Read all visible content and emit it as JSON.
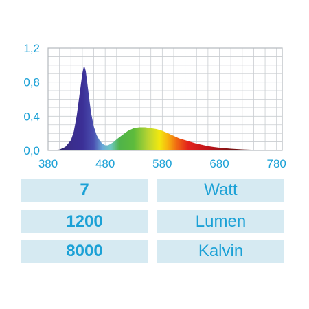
{
  "chart_data": {
    "type": "area",
    "title": "",
    "xlabel": "",
    "ylabel": "",
    "xlim": [
      380,
      790
    ],
    "ylim": [
      0,
      1.2
    ],
    "x_ticks": [
      380,
      480,
      580,
      680,
      780
    ],
    "x_tick_labels": [
      "380",
      "480",
      "580",
      "680",
      "780"
    ],
    "y_ticks": [
      0,
      0.4,
      0.8,
      1.2
    ],
    "y_tick_labels": [
      "0,0",
      "0,4",
      "0,8",
      "1,2"
    ],
    "grid": true,
    "legend": "none",
    "series": [
      {
        "x": [
          380,
          400,
          410,
          420,
          425,
          430,
          435,
          440,
          443,
          446,
          450,
          455,
          460,
          465,
          470,
          475,
          480,
          485,
          490,
          495,
          500,
          510,
          520,
          530,
          540,
          550,
          560,
          570,
          580,
          590,
          600,
          610,
          620,
          630,
          640,
          650,
          660,
          670,
          680,
          700,
          720,
          740,
          760,
          780,
          790
        ],
        "y": [
          0.0,
          0.01,
          0.04,
          0.12,
          0.22,
          0.4,
          0.65,
          0.9,
          1.0,
          0.93,
          0.72,
          0.45,
          0.28,
          0.18,
          0.12,
          0.08,
          0.06,
          0.06,
          0.08,
          0.1,
          0.13,
          0.18,
          0.23,
          0.26,
          0.27,
          0.27,
          0.26,
          0.25,
          0.23,
          0.2,
          0.17,
          0.14,
          0.12,
          0.1,
          0.08,
          0.065,
          0.05,
          0.04,
          0.032,
          0.02,
          0.012,
          0.007,
          0.004,
          0.002,
          0.0
        ]
      }
    ],
    "colors": {
      "axis_text": "#1ba1d6",
      "grid": "#c9cdd1",
      "plot_border": "#b5b9bd"
    }
  },
  "specs": [
    {
      "value": "7",
      "unit": "Watt"
    },
    {
      "value": "1200",
      "unit": "Lumen"
    },
    {
      "value": "8000",
      "unit": "Kalvin"
    }
  ],
  "colors": {
    "spec_bg": "#d6eaf2",
    "spec_text": "#1ba1d6"
  }
}
